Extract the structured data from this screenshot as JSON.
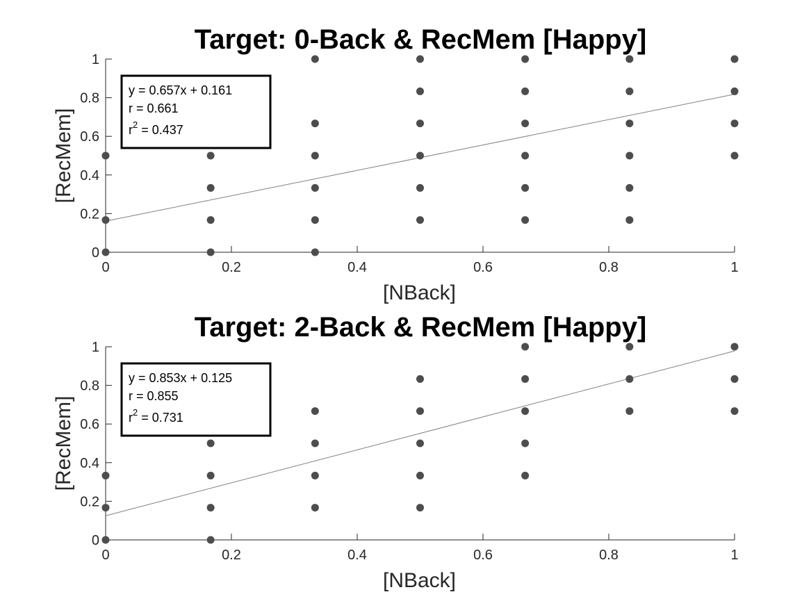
{
  "chart_data": [
    {
      "type": "scatter",
      "title": "Target: 0-Back & RecMem [Happy]",
      "xlabel": "[NBack]",
      "ylabel": "[RecMem]",
      "xlim": [
        0,
        1
      ],
      "ylim": [
        0,
        1
      ],
      "xticks": [
        0,
        0.2,
        0.4,
        0.6,
        0.8,
        1
      ],
      "xtick_labels": [
        "0",
        "0.2",
        "0.4",
        "0.6",
        "0.8",
        "1"
      ],
      "yticks": [
        0,
        0.2,
        0.4,
        0.6,
        0.8,
        1
      ],
      "ytick_labels": [
        "0",
        "0.2",
        "0.4",
        "0.6",
        "0.8",
        "1"
      ],
      "grid": false,
      "marker_color": "#4d4d4d",
      "line_color": "#808080",
      "fit": {
        "slope": 0.657,
        "intercept": 0.161
      },
      "stats": {
        "equation": "y = 0.657x + 0.161",
        "r": "r = 0.661",
        "r2_prefix": "r",
        "r2_exp": "2",
        "r2_value": " = 0.437"
      },
      "points": [
        [
          0,
          0.5
        ],
        [
          0,
          0.167
        ],
        [
          0,
          0
        ],
        [
          0.167,
          0.667
        ],
        [
          0.167,
          0.5
        ],
        [
          0.167,
          0.333
        ],
        [
          0.167,
          0.167
        ],
        [
          0.167,
          0
        ],
        [
          0.333,
          1
        ],
        [
          0.333,
          0.667
        ],
        [
          0.333,
          0.5
        ],
        [
          0.333,
          0.333
        ],
        [
          0.333,
          0.167
        ],
        [
          0.333,
          0
        ],
        [
          0.5,
          1
        ],
        [
          0.5,
          0.833
        ],
        [
          0.5,
          0.667
        ],
        [
          0.5,
          0.5
        ],
        [
          0.5,
          0.333
        ],
        [
          0.5,
          0.167
        ],
        [
          0.667,
          1
        ],
        [
          0.667,
          0.833
        ],
        [
          0.667,
          0.667
        ],
        [
          0.667,
          0.5
        ],
        [
          0.667,
          0.333
        ],
        [
          0.667,
          0.167
        ],
        [
          0.833,
          1
        ],
        [
          0.833,
          0.833
        ],
        [
          0.833,
          0.667
        ],
        [
          0.833,
          0.5
        ],
        [
          0.833,
          0.333
        ],
        [
          0.833,
          0.167
        ],
        [
          1,
          1
        ],
        [
          1,
          0.833
        ],
        [
          1,
          0.667
        ],
        [
          1,
          0.5
        ]
      ]
    },
    {
      "type": "scatter",
      "title": "Target: 2-Back & RecMem [Happy]",
      "xlabel": "[NBack]",
      "ylabel": "[RecMem]",
      "xlim": [
        0,
        1
      ],
      "ylim": [
        0,
        1
      ],
      "xticks": [
        0,
        0.2,
        0.4,
        0.6,
        0.8,
        1
      ],
      "xtick_labels": [
        "0",
        "0.2",
        "0.4",
        "0.6",
        "0.8",
        "1"
      ],
      "yticks": [
        0,
        0.2,
        0.4,
        0.6,
        0.8,
        1
      ],
      "ytick_labels": [
        "0",
        "0.2",
        "0.4",
        "0.6",
        "0.8",
        "1"
      ],
      "grid": false,
      "marker_color": "#4d4d4d",
      "line_color": "#808080",
      "fit": {
        "slope": 0.853,
        "intercept": 0.125
      },
      "stats": {
        "equation": "y = 0.853x + 0.125",
        "r": "r = 0.855",
        "r2_prefix": "r",
        "r2_exp": "2",
        "r2_value": " = 0.731"
      },
      "points": [
        [
          0,
          0.333
        ],
        [
          0,
          0.167
        ],
        [
          0,
          0
        ],
        [
          0.167,
          0.5
        ],
        [
          0.167,
          0.333
        ],
        [
          0.167,
          0.167
        ],
        [
          0.167,
          0
        ],
        [
          0.333,
          0.667
        ],
        [
          0.333,
          0.5
        ],
        [
          0.333,
          0.333
        ],
        [
          0.333,
          0.167
        ],
        [
          0.5,
          0.833
        ],
        [
          0.5,
          0.667
        ],
        [
          0.5,
          0.5
        ],
        [
          0.5,
          0.333
        ],
        [
          0.5,
          0.167
        ],
        [
          0.667,
          1
        ],
        [
          0.667,
          0.833
        ],
        [
          0.667,
          0.667
        ],
        [
          0.667,
          0.5
        ],
        [
          0.667,
          0.333
        ],
        [
          0.833,
          1
        ],
        [
          0.833,
          0.833
        ],
        [
          0.833,
          0.667
        ],
        [
          1,
          1
        ],
        [
          1,
          0.833
        ],
        [
          1,
          0.667
        ]
      ]
    }
  ]
}
